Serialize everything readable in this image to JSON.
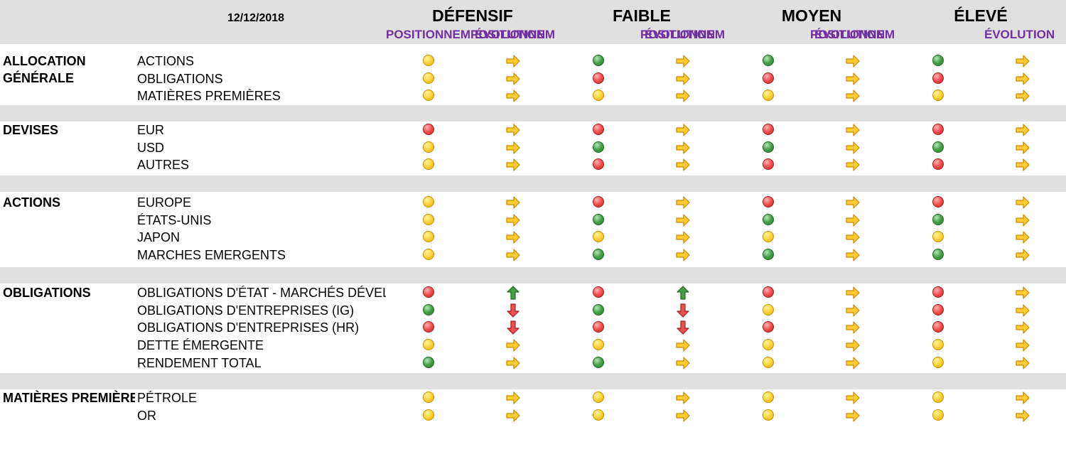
{
  "header": {
    "date": "12/12/2018",
    "profiles": [
      "DÉFENSIF",
      "FAIBLE",
      "MOYEN",
      "ÉLEVÉ"
    ],
    "sub_positioning": "POSITIONNEMENT",
    "sub_evolution": "ÉVOLUTION"
  },
  "colors": {
    "header_bg": "#e0e0e0",
    "subheader": "#7030a0",
    "yellow": "#ffd23a",
    "red": "#ef4e4e",
    "green": "#43a047",
    "arrow_right": "#ffcc33",
    "arrow_up": "#43a047",
    "arrow_down": "#ef4e4e"
  },
  "sections": [
    {
      "category": [
        "ALLOCATION",
        "GÉNÉRALE"
      ],
      "rows": [
        {
          "label": "ACTIONS",
          "cells": [
            [
              "yellow",
              "right"
            ],
            [
              "green",
              "right"
            ],
            [
              "green",
              "right"
            ],
            [
              "green",
              "right"
            ]
          ]
        },
        {
          "label": "OBLIGATIONS",
          "cells": [
            [
              "yellow",
              "right"
            ],
            [
              "red",
              "right"
            ],
            [
              "red",
              "right"
            ],
            [
              "red",
              "right"
            ]
          ]
        },
        {
          "label": "MATIÈRES PREMIÈRES",
          "cells": [
            [
              "yellow",
              "right"
            ],
            [
              "yellow",
              "right"
            ],
            [
              "yellow",
              "right"
            ],
            [
              "yellow",
              "right"
            ]
          ]
        }
      ]
    },
    {
      "category": [
        "DEVISES"
      ],
      "rows": [
        {
          "label": "EUR",
          "cells": [
            [
              "red",
              "right"
            ],
            [
              "red",
              "right"
            ],
            [
              "red",
              "right"
            ],
            [
              "red",
              "right"
            ]
          ]
        },
        {
          "label": "USD",
          "cells": [
            [
              "yellow",
              "right"
            ],
            [
              "green",
              "right"
            ],
            [
              "green",
              "right"
            ],
            [
              "green",
              "right"
            ]
          ]
        },
        {
          "label": "AUTRES",
          "cells": [
            [
              "yellow",
              "right"
            ],
            [
              "red",
              "right"
            ],
            [
              "red",
              "right"
            ],
            [
              "red",
              "right"
            ]
          ]
        }
      ]
    },
    {
      "category": [
        "ACTIONS"
      ],
      "rows": [
        {
          "label": "EUROPE",
          "cells": [
            [
              "yellow",
              "right"
            ],
            [
              "red",
              "right"
            ],
            [
              "red",
              "right"
            ],
            [
              "red",
              "right"
            ]
          ]
        },
        {
          "label": "ÉTATS-UNIS",
          "cells": [
            [
              "yellow",
              "right"
            ],
            [
              "green",
              "right"
            ],
            [
              "green",
              "right"
            ],
            [
              "green",
              "right"
            ]
          ]
        },
        {
          "label": "JAPON",
          "cells": [
            [
              "yellow",
              "right"
            ],
            [
              "yellow",
              "right"
            ],
            [
              "yellow",
              "right"
            ],
            [
              "yellow",
              "right"
            ]
          ]
        },
        {
          "label": "MARCHES EMERGENTS",
          "cells": [
            [
              "yellow",
              "right"
            ],
            [
              "green",
              "right"
            ],
            [
              "green",
              "right"
            ],
            [
              "green",
              "right"
            ]
          ]
        }
      ]
    },
    {
      "category": [
        "OBLIGATIONS"
      ],
      "rows": [
        {
          "label": "OBLIGATIONS D'ÉTAT - MARCHÉS DÉVELOPPÉS",
          "cells": [
            [
              "red",
              "up"
            ],
            [
              "red",
              "up"
            ],
            [
              "red",
              "right"
            ],
            [
              "red",
              "right"
            ]
          ]
        },
        {
          "label": "OBLIGATIONS D'ENTREPRISES (IG)",
          "cells": [
            [
              "green",
              "down"
            ],
            [
              "green",
              "down"
            ],
            [
              "yellow",
              "right"
            ],
            [
              "red",
              "right"
            ]
          ]
        },
        {
          "label": "OBLIGATIONS D'ENTREPRISES (HR)",
          "cells": [
            [
              "red",
              "down"
            ],
            [
              "red",
              "down"
            ],
            [
              "red",
              "right"
            ],
            [
              "red",
              "right"
            ]
          ]
        },
        {
          "label": "DETTE ÉMERGENTE",
          "cells": [
            [
              "yellow",
              "right"
            ],
            [
              "yellow",
              "right"
            ],
            [
              "yellow",
              "right"
            ],
            [
              "yellow",
              "right"
            ]
          ]
        },
        {
          "label": "RENDEMENT TOTAL",
          "cells": [
            [
              "green",
              "right"
            ],
            [
              "green",
              "right"
            ],
            [
              "yellow",
              "right"
            ],
            [
              "yellow",
              "right"
            ]
          ]
        }
      ]
    },
    {
      "category": [
        "MATIÈRES PREMIÈRES"
      ],
      "rows": [
        {
          "label": "PÉTROLE",
          "cells": [
            [
              "yellow",
              "right"
            ],
            [
              "yellow",
              "right"
            ],
            [
              "yellow",
              "right"
            ],
            [
              "yellow",
              "right"
            ]
          ]
        },
        {
          "label": "OR",
          "cells": [
            [
              "yellow",
              "right"
            ],
            [
              "yellow",
              "right"
            ],
            [
              "yellow",
              "right"
            ],
            [
              "yellow",
              "right"
            ]
          ]
        }
      ]
    }
  ]
}
